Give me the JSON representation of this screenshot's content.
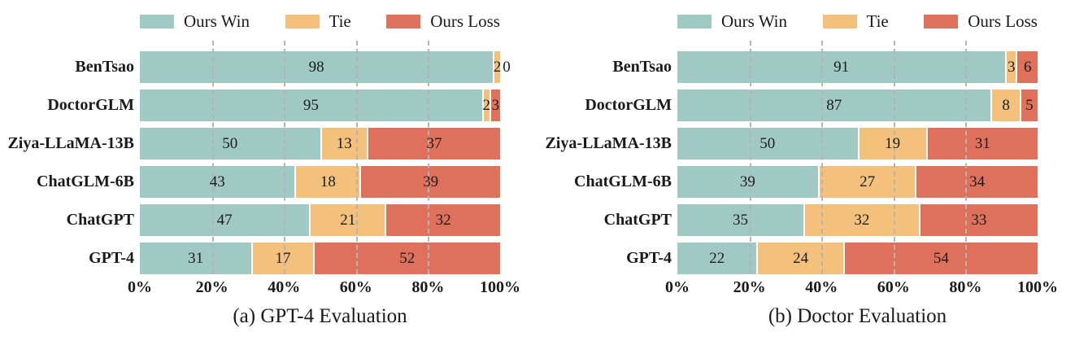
{
  "colors": {
    "win": "#a1c9c4",
    "tie": "#f3c17c",
    "loss": "#df705b",
    "grid": "#b4b4b4",
    "text": "#1a1a1a"
  },
  "x_ticks": [
    "0%",
    "20%",
    "40%",
    "60%",
    "80%",
    "100%"
  ],
  "chart_data": [
    {
      "type": "bar",
      "orientation": "horizontal-stacked",
      "title": "(a) GPT-4 Evaluation",
      "categories": [
        "BenTsao",
        "DoctorGLM",
        "Ziya-LLaMA-13B",
        "ChatGLM-6B",
        "ChatGPT",
        "GPT-4"
      ],
      "series": [
        {
          "name": "Ours Win",
          "color": "#a1c9c4",
          "values": [
            98,
            95,
            50,
            43,
            47,
            31
          ]
        },
        {
          "name": "Tie",
          "color": "#f3c17c",
          "values": [
            2,
            2,
            13,
            18,
            21,
            17
          ]
        },
        {
          "name": "Ours Loss",
          "color": "#df705b",
          "values": [
            0,
            3,
            37,
            39,
            32,
            52
          ]
        }
      ],
      "xlim": [
        0,
        100
      ],
      "x_ticks": [
        "0%",
        "20%",
        "40%",
        "60%",
        "80%",
        "100%"
      ],
      "grid": "dashed vertical lines at 20/40/60/80, drawn over bars",
      "legend_position": "top"
    },
    {
      "type": "bar",
      "orientation": "horizontal-stacked",
      "title": "(b) Doctor Evaluation",
      "categories": [
        "BenTsao",
        "DoctorGLM",
        "Ziya-LLaMA-13B",
        "ChatGLM-6B",
        "ChatGPT",
        "GPT-4"
      ],
      "series": [
        {
          "name": "Ours Win",
          "color": "#a1c9c4",
          "values": [
            91,
            87,
            50,
            39,
            35,
            22
          ]
        },
        {
          "name": "Tie",
          "color": "#f3c17c",
          "values": [
            3,
            8,
            19,
            27,
            32,
            24
          ]
        },
        {
          "name": "Ours Loss",
          "color": "#df705b",
          "values": [
            6,
            5,
            31,
            34,
            33,
            54
          ]
        }
      ],
      "xlim": [
        0,
        100
      ],
      "x_ticks": [
        "0%",
        "20%",
        "40%",
        "60%",
        "80%",
        "100%"
      ],
      "grid": "dashed vertical lines at 20/40/60/80, drawn over bars",
      "legend_position": "top"
    }
  ]
}
